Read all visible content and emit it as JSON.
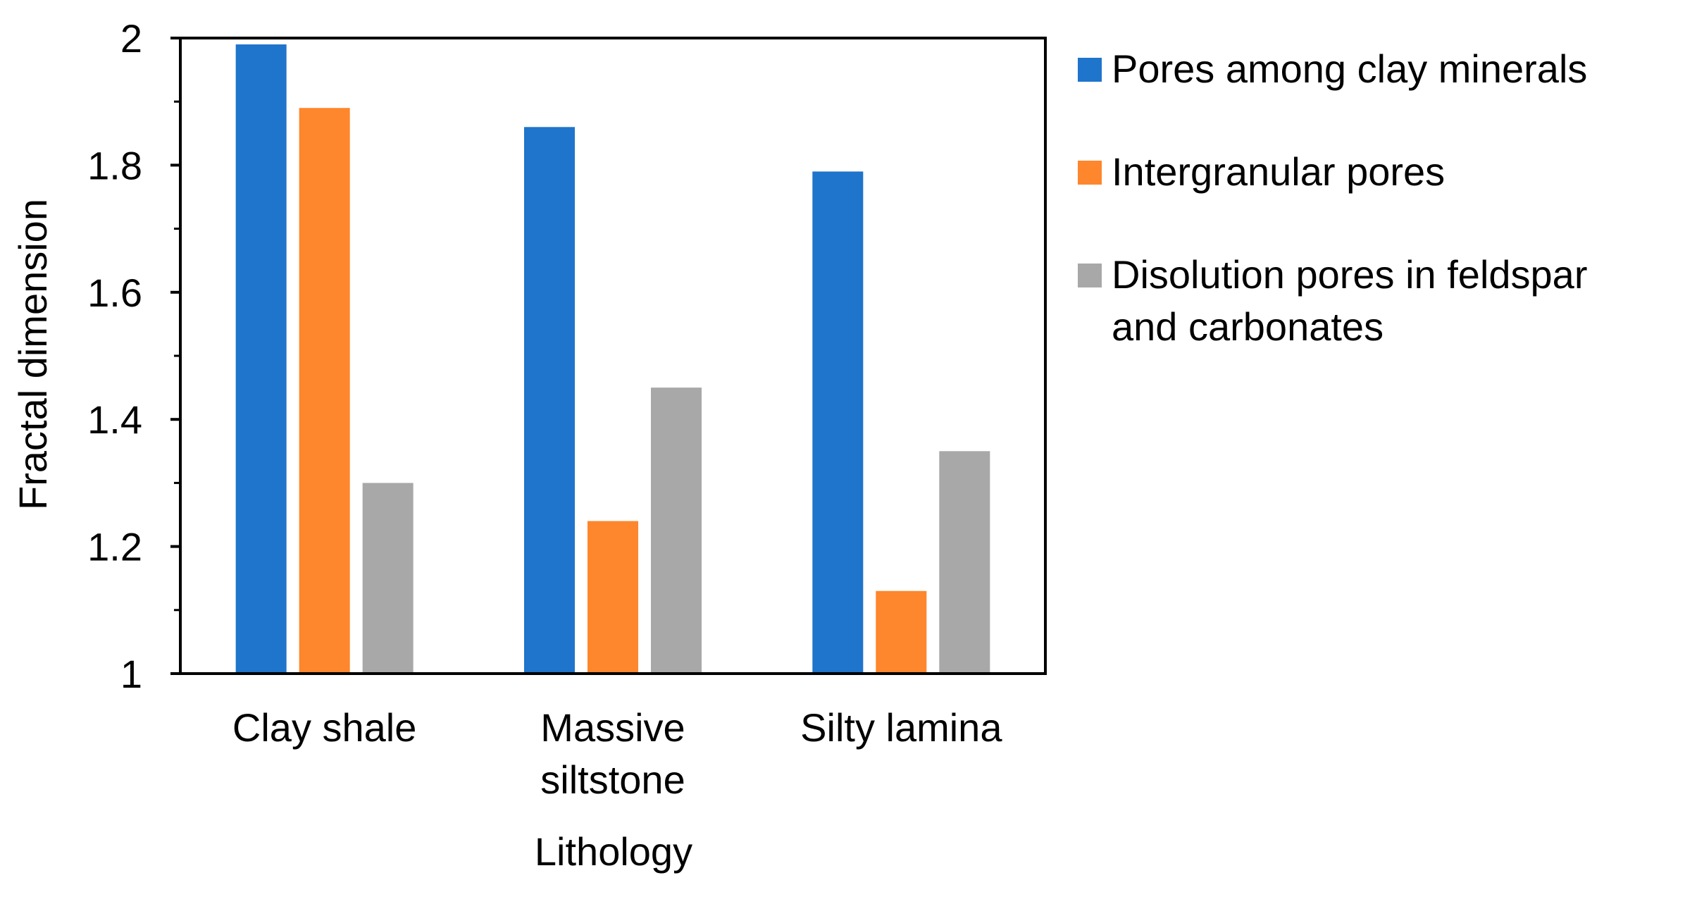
{
  "chart_data": {
    "type": "bar",
    "title": "",
    "xlabel": "Lithology",
    "ylabel": "Fractal dimension",
    "ylim": [
      1,
      2
    ],
    "yticks": [
      "1",
      "1.2",
      "1.4",
      "1.6",
      "1.8",
      "2"
    ],
    "ytick_values": [
      1,
      1.2,
      1.4,
      1.6,
      1.8,
      2
    ],
    "grid": false,
    "legend_position": "right",
    "categories": [
      [
        "Clay shale"
      ],
      [
        "Massive",
        "siltstone"
      ],
      [
        "Silty lamina"
      ]
    ],
    "series": [
      {
        "name": "Pores among clay minerals",
        "name_lines": [
          "Pores among clay minerals"
        ],
        "color": "#1f74cb",
        "values": [
          1.99,
          1.86,
          1.79
        ]
      },
      {
        "name": "Intergranular pores",
        "name_lines": [
          "Intergranular pores"
        ],
        "color": "#fe862c",
        "values": [
          1.89,
          1.24,
          1.13
        ]
      },
      {
        "name": "Disolution pores in feldspar and carbonates",
        "name_lines": [
          "Disolution pores in feldspar",
          "and carbonates"
        ],
        "color": "#a8a8a8",
        "values": [
          1.3,
          1.45,
          1.35
        ]
      }
    ]
  }
}
